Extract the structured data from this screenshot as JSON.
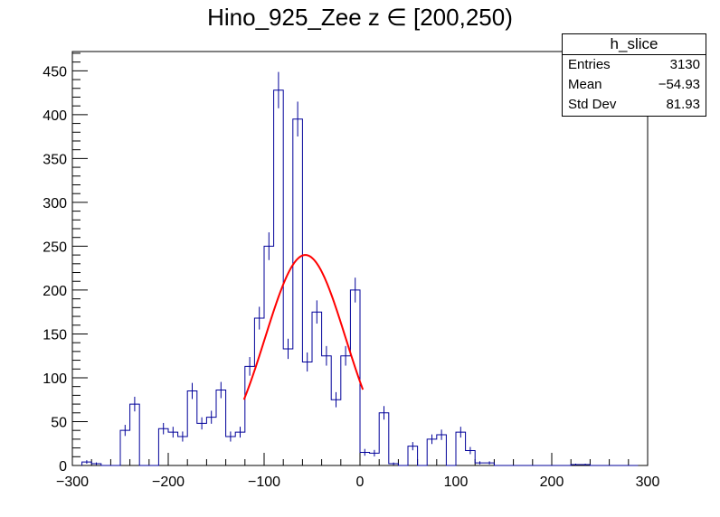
{
  "title": "Hino_925_Zee z  ∈ [200,250)",
  "stats_box": {
    "name": "h_slice",
    "rows": [
      {
        "label": "Entries",
        "value": "3130"
      },
      {
        "label": "Mean",
        "value": "−54.93"
      },
      {
        "label": "Std Dev",
        "value": "81.93"
      }
    ]
  },
  "colors": {
    "histogram": "#000099",
    "fit": "#ff0000",
    "axis": "#000000"
  },
  "chart_data": {
    "type": "histogram",
    "title": "Hino_925_Zee z  ∈ [200,250)",
    "xlabel": "",
    "ylabel": "",
    "xlim": [
      -300,
      300
    ],
    "ylim": [
      0,
      472
    ],
    "x_ticks": [
      -300,
      -200,
      -100,
      0,
      100,
      200,
      300
    ],
    "y_ticks": [
      0,
      50,
      100,
      150,
      200,
      250,
      300,
      350,
      400,
      450
    ],
    "bin_width": 10,
    "bins_x_start": [
      -290,
      -280,
      -270,
      -260,
      -250,
      -240,
      -230,
      -220,
      -210,
      -200,
      -190,
      -180,
      -170,
      -160,
      -150,
      -140,
      -130,
      -120,
      -110,
      -100,
      -90,
      -80,
      -70,
      -60,
      -50,
      -40,
      -30,
      -20,
      -10,
      0,
      10,
      20,
      30,
      40,
      50,
      60,
      70,
      80,
      90,
      100,
      110,
      120,
      130,
      140,
      150,
      160,
      170,
      180,
      190,
      200,
      210,
      220,
      230,
      240,
      250,
      260,
      270,
      280
    ],
    "values": [
      4,
      2,
      0,
      0,
      40,
      70,
      0,
      0,
      42,
      38,
      33,
      85,
      48,
      55,
      86,
      33,
      38,
      113,
      168,
      250,
      428,
      133,
      395,
      118,
      175,
      125,
      75,
      125,
      200,
      15,
      14,
      60,
      2,
      0,
      22,
      0,
      30,
      35,
      0,
      38,
      17,
      3,
      3,
      0,
      0,
      0,
      0,
      0,
      0,
      0,
      0,
      1,
      1,
      0,
      0,
      0,
      0,
      0
    ],
    "fit": {
      "type": "gaus",
      "constant": 240,
      "mean": -57,
      "sigma": 42,
      "range": [
        -121,
        3
      ]
    }
  }
}
